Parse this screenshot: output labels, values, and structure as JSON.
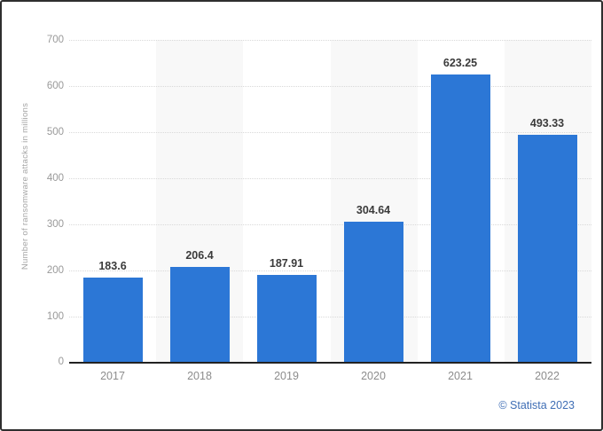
{
  "chart": {
    "ylabel": "Number of ransomware attacks in millions",
    "attribution": "© Statista 2023",
    "colors": {
      "bar": "#2c77d6",
      "band": "#f8f8f8",
      "gridline": "#d9d9d9",
      "axis_line": "#222222",
      "tick_text": "#999999",
      "data_label_text": "#3b3b3b",
      "credit_text": "#3f6eb5",
      "frame_border": "#2e2e2e"
    }
  },
  "chart_data": {
    "type": "bar",
    "categories": [
      "2017",
      "2018",
      "2019",
      "2020",
      "2021",
      "2022"
    ],
    "values": [
      183.6,
      206.4,
      187.91,
      304.64,
      623.25,
      493.33
    ],
    "value_labels": [
      "183.6",
      "206.4",
      "187.91",
      "304.64",
      "623.25",
      "493.33"
    ],
    "title": "",
    "xlabel": "",
    "ylabel": "Number of ransomware attacks in millions",
    "ylim": [
      0,
      700
    ],
    "ytick_labels": [
      "700",
      "600",
      "500",
      "400",
      "300",
      "200",
      "100",
      "0"
    ],
    "grid": "horizontal dotted",
    "legend": "none",
    "bar_color": "#2c77d6",
    "annotations": "values shown above each bar",
    "attribution": "© Statista 2023"
  }
}
